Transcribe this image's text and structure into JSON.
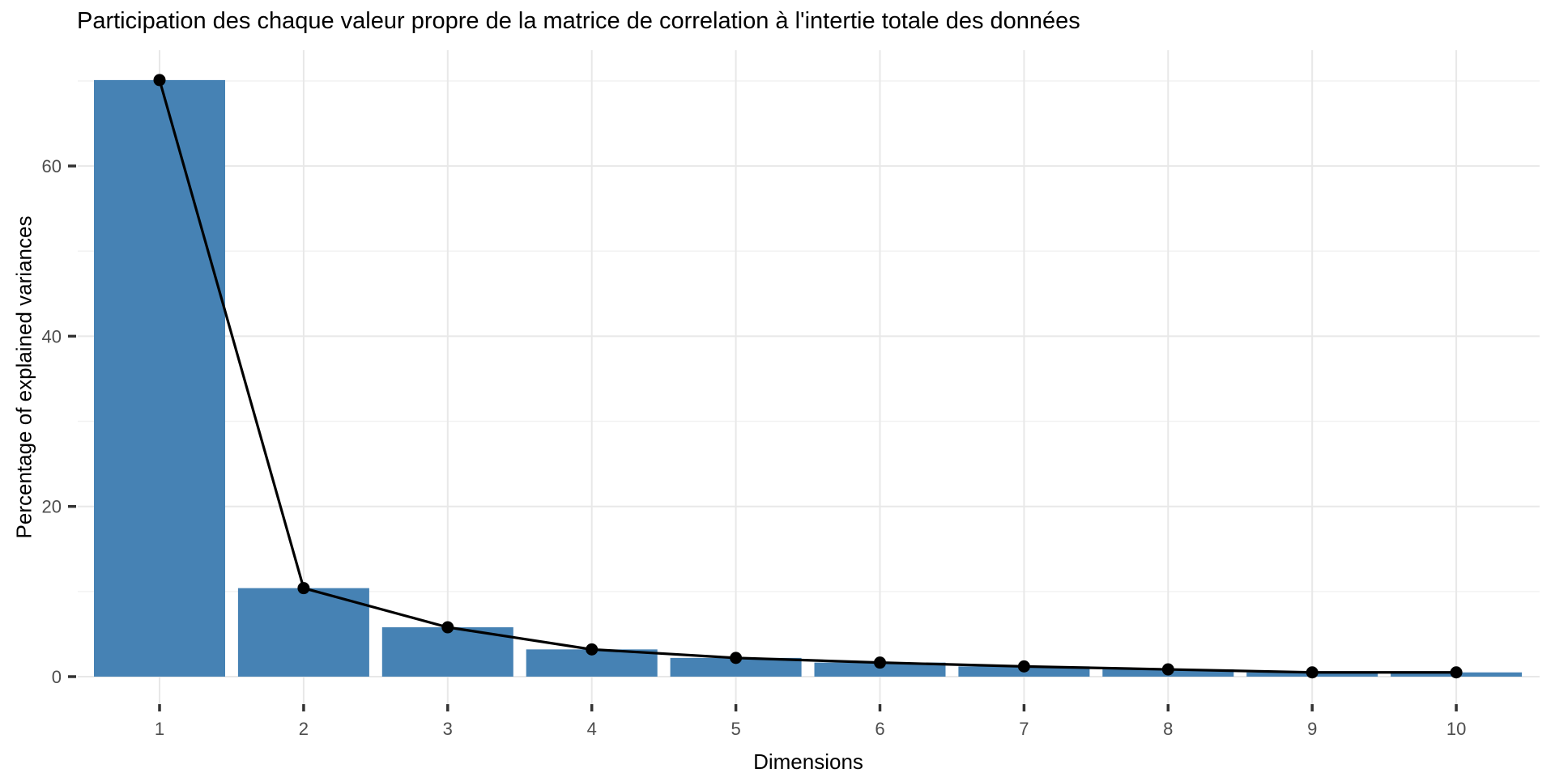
{
  "page": {
    "background_color": "#FFFFFF"
  },
  "chart_data": {
    "type": "bar",
    "overlay": "line",
    "title": "Participation des chaque valeur propre de la matrice de correlation à l'intertie totale des données",
    "xlabel": "Dimensions",
    "ylabel": "Percentage of explained variances",
    "categories": [
      "1",
      "2",
      "3",
      "4",
      "5",
      "6",
      "7",
      "8",
      "9",
      "10"
    ],
    "values": [
      70.1,
      10.4,
      5.8,
      3.2,
      2.2,
      1.65,
      1.2,
      0.85,
      0.5,
      0.5
    ],
    "line_follows_bar_tops": true,
    "ylim": [
      0,
      73.6
    ],
    "yticks": [
      0,
      20,
      40,
      60
    ],
    "ytick_labels": [
      "0",
      "20",
      "40",
      "60"
    ],
    "yticks_minor": [
      10,
      30,
      50,
      70
    ],
    "grid": "on",
    "legend": "none",
    "colors": {
      "bar_fill": "#4682B4",
      "line": "#000000",
      "point": "#000000",
      "grid_major": "#E8E8E8",
      "grid_minor": "#F2F2F2",
      "tick_mark": "#333333",
      "tick_label": "#4D4D4D",
      "title": "#000000",
      "background": "#FFFFFF"
    }
  }
}
